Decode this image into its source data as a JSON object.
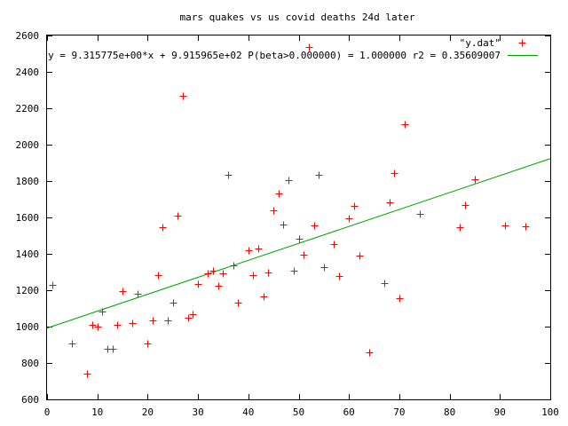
{
  "chart_data": {
    "type": "scatter",
    "title": "mars quakes vs us covid deaths 24d later",
    "xlabel": "",
    "ylabel": "",
    "xlim": [
      0,
      100
    ],
    "ylim": [
      600,
      2600
    ],
    "xticks": [
      0,
      10,
      20,
      30,
      40,
      50,
      60,
      70,
      80,
      90,
      100
    ],
    "yticks": [
      600,
      800,
      1000,
      1200,
      1400,
      1600,
      1800,
      2000,
      2200,
      2400,
      2600
    ],
    "grid": false,
    "legend_position": "top-right",
    "series": [
      {
        "name": "\"y.dat\"",
        "type": "scatter",
        "marker": "+",
        "color": "#ff0000",
        "points": [
          [
            1,
            1230
          ],
          [
            5,
            905
          ],
          [
            8,
            742
          ],
          [
            9,
            1010
          ],
          [
            10,
            1000
          ],
          [
            11,
            1085
          ],
          [
            12,
            880
          ],
          [
            13,
            880
          ],
          [
            14,
            1010
          ],
          [
            15,
            1195
          ],
          [
            17,
            1020
          ],
          [
            18,
            1180
          ],
          [
            20,
            905
          ],
          [
            21,
            1035
          ],
          [
            22,
            1285
          ],
          [
            23,
            1545
          ],
          [
            24,
            1035
          ],
          [
            25,
            1130
          ],
          [
            26,
            1610
          ],
          [
            27,
            2270
          ],
          [
            28,
            1050
          ],
          [
            29,
            1070
          ],
          [
            30,
            1235
          ],
          [
            32,
            1295
          ],
          [
            33,
            1305
          ],
          [
            34,
            1225
          ],
          [
            35,
            1295
          ],
          [
            36,
            1835
          ],
          [
            37,
            1335
          ],
          [
            38,
            1130
          ],
          [
            40,
            1420
          ],
          [
            41,
            1285
          ],
          [
            42,
            1430
          ],
          [
            43,
            1165
          ],
          [
            44,
            1300
          ],
          [
            45,
            1640
          ],
          [
            46,
            1730
          ],
          [
            47,
            1560
          ],
          [
            48,
            1805
          ],
          [
            49,
            1305
          ],
          [
            50,
            1485
          ],
          [
            51,
            1395
          ],
          [
            52,
            2535
          ],
          [
            53,
            1555
          ],
          [
            54,
            1835
          ],
          [
            55,
            1325
          ],
          [
            57,
            1455
          ],
          [
            58,
            1280
          ],
          [
            60,
            1595
          ],
          [
            61,
            1665
          ],
          [
            62,
            1390
          ],
          [
            64,
            860
          ],
          [
            67,
            1240
          ],
          [
            68,
            1685
          ],
          [
            69,
            1845
          ],
          [
            70,
            1155
          ],
          [
            71,
            2110
          ],
          [
            74,
            1620
          ],
          [
            82,
            1545
          ],
          [
            83,
            1670
          ],
          [
            85,
            1810
          ],
          [
            91,
            1555
          ],
          [
            95,
            1550
          ]
        ]
      },
      {
        "name": "y = 9.315775e+00*x + 9.915965e+02 P(beta>0.000000) = 1.000000 r2 = 0.35609007",
        "type": "line",
        "color": "#00a000",
        "slope": 9.315775,
        "intercept": 991.5965
      }
    ]
  }
}
